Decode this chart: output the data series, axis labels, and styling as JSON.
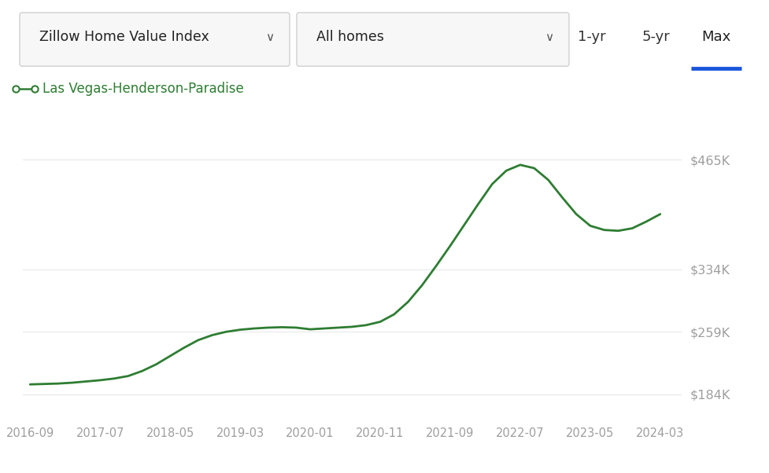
{
  "line_color": "#2e7d32",
  "legend_label": "Las Vegas-Henderson-Paradise",
  "background_color": "#ffffff",
  "grid_color": "#e8e8e8",
  "ytick_labels": [
    "$184K",
    "$259K",
    "$334K",
    "$465K"
  ],
  "ytick_values": [
    184000,
    259000,
    334000,
    465000
  ],
  "ylim": [
    155000,
    495000
  ],
  "xtick_labels": [
    "2016-09",
    "2017-07",
    "2018-05",
    "2019-03",
    "2020-01",
    "2020-11",
    "2021-09",
    "2022-07",
    "2023-05",
    "2024-03"
  ],
  "x_numeric": [
    0,
    10,
    20,
    30,
    40,
    50,
    60,
    70,
    80,
    90
  ],
  "xlim": [
    -1,
    93
  ],
  "data_x": [
    0,
    2,
    4,
    6,
    8,
    10,
    12,
    14,
    16,
    18,
    20,
    22,
    24,
    26,
    28,
    30,
    32,
    34,
    36,
    38,
    40,
    42,
    44,
    46,
    48,
    50,
    52,
    54,
    56,
    58,
    60,
    62,
    64,
    66,
    68,
    70,
    72,
    74,
    76,
    78,
    80,
    82,
    84,
    86,
    88,
    90
  ],
  "data_y": [
    196000,
    196500,
    197000,
    198000,
    199500,
    201000,
    203000,
    206000,
    212000,
    220000,
    230000,
    240000,
    249000,
    255000,
    259000,
    261500,
    263000,
    264000,
    264500,
    264000,
    262000,
    263000,
    264000,
    265000,
    267000,
    271000,
    280000,
    295000,
    315000,
    338000,
    362000,
    387000,
    412000,
    436000,
    452000,
    459000,
    455000,
    441000,
    420000,
    400000,
    386000,
    381000,
    380000,
    383000,
    391000,
    400000
  ],
  "dropdown1_text": "Zillow Home Value Index",
  "dropdown2_text": "All homes",
  "active_btn_color": "#1a56db",
  "text_color_axis": "#9e9e9e",
  "header_bg": "#f8f8f8"
}
